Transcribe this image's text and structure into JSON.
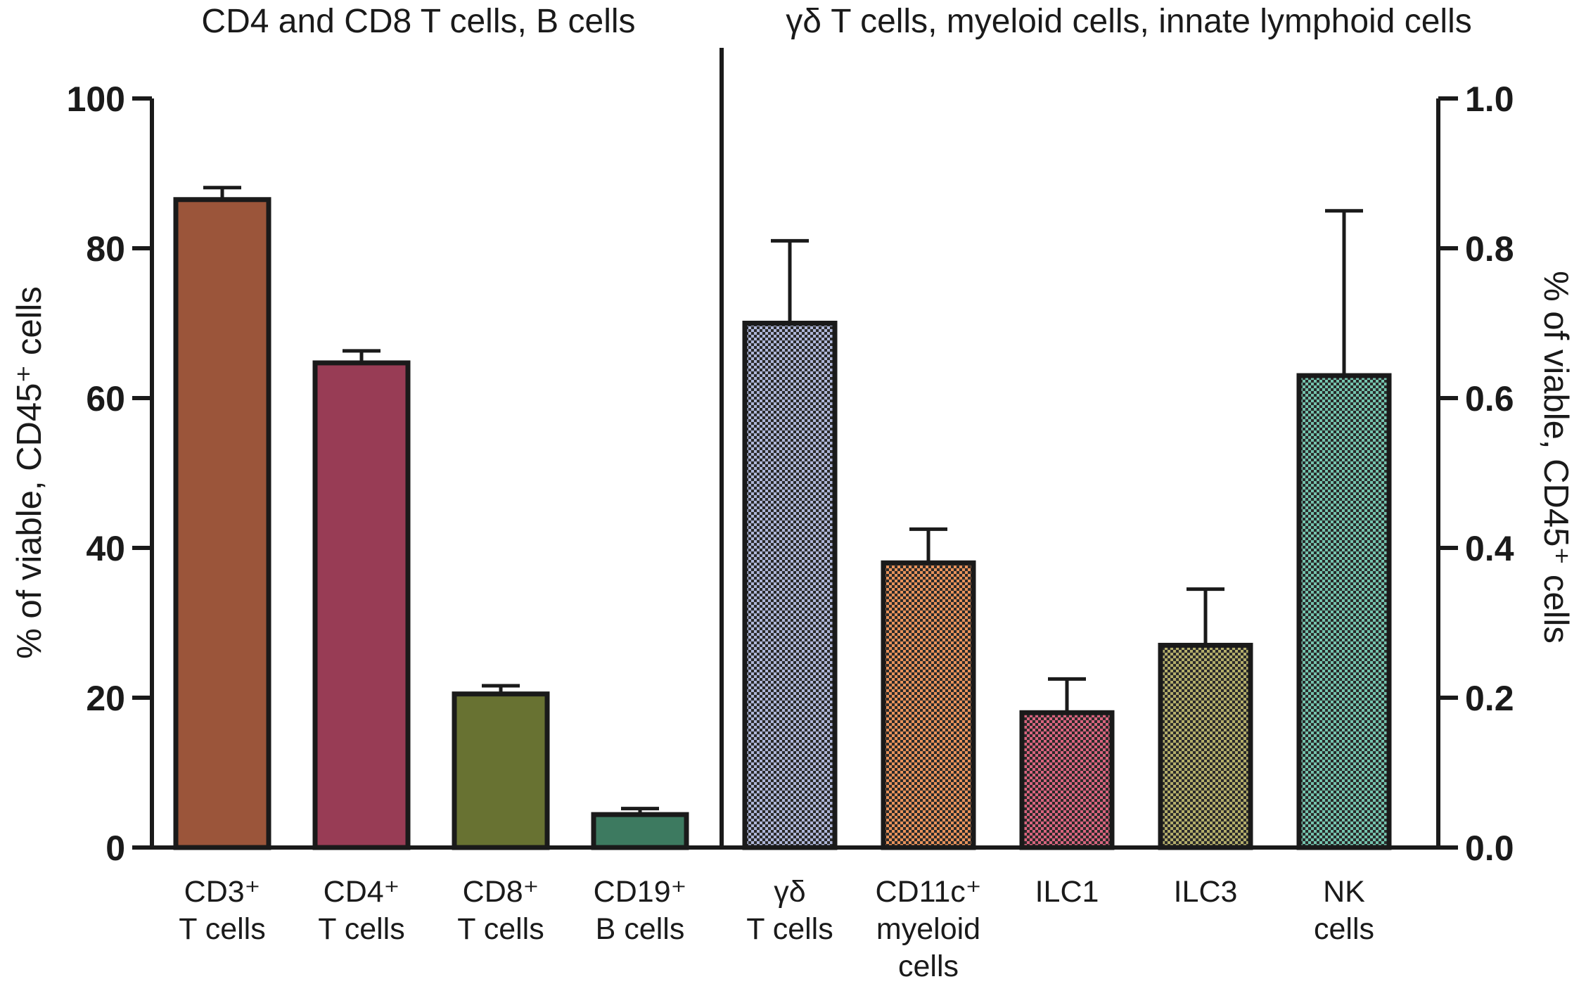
{
  "chart_data": {
    "type": "bar",
    "title_left": "CD4 and CD8 T cells, B cells",
    "title_right": "γδ T cells, myeloid cells, innate lymphoid cells",
    "ylabel_left": "% of viable, CD45⁺ cells",
    "ylabel_right": "% of viable, CD45⁺ cells",
    "ylim_left": [
      0,
      100
    ],
    "ylim_right": [
      0,
      1.0
    ],
    "yticks_left": [
      "0",
      "20",
      "40",
      "60",
      "80",
      "100"
    ],
    "yticks_right": [
      "0.0",
      "0.2",
      "0.4",
      "0.6",
      "0.8",
      "1.0"
    ],
    "grid": false,
    "series": [
      {
        "axis": "left",
        "pattern": "solid",
        "categories": [
          {
            "lines": [
              "CD3⁺",
              "T cells"
            ],
            "value": 86.5,
            "error": 1.6,
            "color": "#9b553a"
          },
          {
            "lines": [
              "CD4⁺",
              "T cells"
            ],
            "value": 64.7,
            "error": 1.6,
            "color": "#983c55"
          },
          {
            "lines": [
              "CD8⁺",
              "T cells"
            ],
            "value": 20.5,
            "error": 1.1,
            "color": "#687232"
          },
          {
            "lines": [
              "CD19⁺",
              "B cells"
            ],
            "value": 4.4,
            "error": 0.8,
            "color": "#3d7a60"
          }
        ]
      },
      {
        "axis": "right",
        "pattern": "checkered",
        "categories": [
          {
            "lines": [
              "γδ",
              "T cells"
            ],
            "value": 0.7,
            "error": 0.11,
            "color": "#aeb6d8"
          },
          {
            "lines": [
              "CD11c⁺",
              "myeloid",
              "cells"
            ],
            "value": 0.38,
            "error": 0.045,
            "color": "#e8925a"
          },
          {
            "lines": [
              "ILC1"
            ],
            "value": 0.18,
            "error": 0.045,
            "color": "#d9647e"
          },
          {
            "lines": [
              "ILC3"
            ],
            "value": 0.27,
            "error": 0.075,
            "color": "#b3ad6a"
          },
          {
            "lines": [
              "NK",
              "cells"
            ],
            "value": 0.63,
            "error": 0.22,
            "color": "#74c3ad"
          }
        ]
      }
    ]
  }
}
